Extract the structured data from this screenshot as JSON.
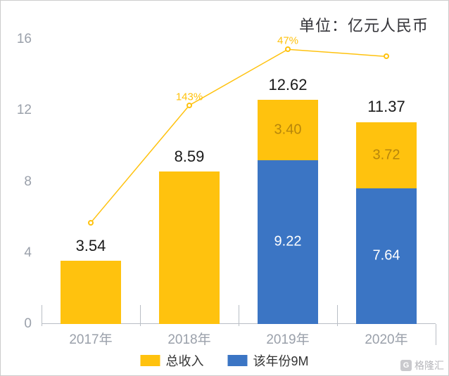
{
  "unit_label": "单位：亿元人民币",
  "chart": {
    "type": "bar+line",
    "background_color": "#ffffff",
    "axis_color": "#b9bec5",
    "tick_label_color": "#9aa0aa",
    "tick_label_fontsize": 19,
    "value_label_color": "#1a1a1a",
    "value_label_fontsize": 22,
    "ylim": [
      0,
      17
    ],
    "yticks": [
      0,
      4,
      8,
      12,
      16
    ],
    "categories": [
      "2017年",
      "2018年",
      "2019年",
      "2020年"
    ],
    "bar_width_ratio": 0.62,
    "series_a": {
      "name": "总收入",
      "color": "#ffc20e",
      "values_top": [
        3.54,
        8.59,
        3.4,
        3.72
      ],
      "seg_label_color": "#b7860b"
    },
    "series_b": {
      "name": "该年份9M",
      "color": "#3b75c4",
      "values_bottom": [
        null,
        null,
        9.22,
        7.64
      ],
      "seg_label_color": "#ffffff"
    },
    "totals": [
      3.54,
      8.59,
      12.62,
      11.37
    ],
    "line": {
      "color": "#ffc20e",
      "line_width": 1.5,
      "marker_size": 8,
      "points": [
        {
          "x_index": 0,
          "y": 5.7,
          "label": ""
        },
        {
          "x_index": 1,
          "y": 12.3,
          "label": "143%"
        },
        {
          "x_index": 2,
          "y": 15.45,
          "label": "47%"
        },
        {
          "x_index": 3,
          "y": 15.05,
          "label": ""
        }
      ]
    }
  },
  "legend": {
    "items": [
      {
        "label": "总收入",
        "color": "#ffc20e"
      },
      {
        "label": "该年份9M",
        "color": "#3b75c4"
      }
    ],
    "fontsize": 18
  },
  "watermark": {
    "text": "格隆汇",
    "icon_letter": "G"
  }
}
